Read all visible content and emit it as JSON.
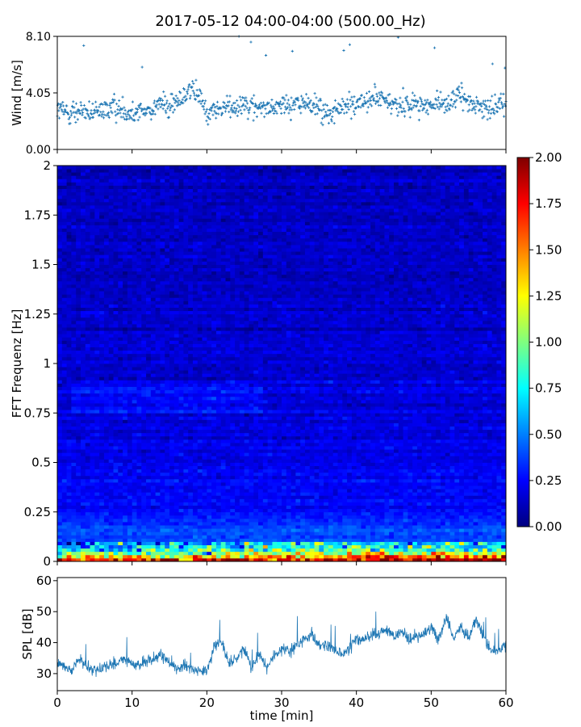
{
  "figure": {
    "title": "2017-05-12 04:00-04:00 (500.00_Hz)"
  },
  "chart_data": [
    {
      "id": "wind",
      "type": "scatter",
      "ylabel": "Wind [m/s]",
      "xlim": [
        0,
        60
      ],
      "ylim": [
        0.0,
        8.1
      ],
      "yticks": [
        0.0,
        4.05,
        8.1
      ],
      "ytick_labels": [
        "0.00",
        "4.05",
        "8.10"
      ],
      "marker": "+",
      "color": "#1f77b4",
      "sample_count": 900,
      "series": [
        {
          "x": [
            0.0,
            2.5,
            5.0,
            7.5,
            10.0,
            12.5,
            14.0,
            15.0,
            17.5,
            19.0,
            20.0,
            22.5,
            25.0,
            27.5,
            30.0,
            32.5,
            35.0,
            36.0,
            37.5,
            40.0,
            42.5,
            45.0,
            47.5,
            50.0,
            52.5,
            54.0,
            55.0,
            57.5,
            60.0
          ],
          "y": [
            2.8,
            2.7,
            2.6,
            3.0,
            2.7,
            2.8,
            3.4,
            2.9,
            4.3,
            3.8,
            2.6,
            3.0,
            3.4,
            2.9,
            3.2,
            3.3,
            3.0,
            2.4,
            2.9,
            3.3,
            3.7,
            3.2,
            3.3,
            3.1,
            3.4,
            3.9,
            3.3,
            3.0,
            3.2
          ]
        }
      ]
    },
    {
      "id": "spectrogram",
      "type": "heatmap",
      "ylabel": "FFT Frequenz [Hz]",
      "xlim": [
        0,
        60
      ],
      "ylim": [
        0,
        2
      ],
      "yticks": [
        0,
        0.25,
        0.5,
        0.75,
        1,
        1.25,
        1.5,
        1.75,
        2
      ],
      "ytick_labels": [
        "0",
        "0.25",
        "0.5",
        "0.75",
        "1",
        "1.25",
        "1.5",
        "1.75",
        "2"
      ],
      "colormap": "jet",
      "value_range": [
        0.0,
        2.0
      ],
      "colorbar_ticks": [
        0.0,
        0.25,
        0.5,
        0.75,
        1.0,
        1.25,
        1.5,
        1.75,
        2.0
      ],
      "colorbar_tick_labels": [
        "0.00",
        "0.25",
        "0.50",
        "0.75",
        "1.00",
        "1.25",
        "1.50",
        "1.75",
        "2.00"
      ],
      "time_bins": 96,
      "freq_bins": 120,
      "frequency_profile": {
        "freq": [
          0.0,
          0.02,
          0.05,
          0.1,
          0.25,
          0.5,
          1.0,
          1.5,
          2.0
        ],
        "level": [
          1.9,
          1.4,
          0.8,
          0.42,
          0.27,
          0.2,
          0.16,
          0.14,
          0.12
        ]
      }
    },
    {
      "id": "spl",
      "type": "line",
      "ylabel": "SPL [dB]",
      "xlabel": "time [min]",
      "xlim": [
        0,
        60
      ],
      "ylim": [
        24.5,
        61
      ],
      "yticks": [
        30,
        40,
        50,
        60
      ],
      "ytick_labels": [
        "30",
        "40",
        "50",
        "60"
      ],
      "xticks": [
        0,
        10,
        20,
        30,
        40,
        50,
        60
      ],
      "xtick_labels": [
        "0",
        "10",
        "20",
        "30",
        "40",
        "50",
        "60"
      ],
      "color": "#1f77b4",
      "series": [
        {
          "x": [
            0,
            1,
            2,
            3,
            4,
            5,
            6,
            7,
            8,
            9,
            10,
            11,
            12,
            13,
            14,
            15,
            16,
            17,
            18,
            19,
            20,
            21,
            22,
            23,
            24,
            25,
            26,
            27,
            28,
            29,
            30,
            31,
            32,
            33,
            34,
            35,
            36,
            37,
            38,
            39,
            40,
            41,
            42,
            43,
            44,
            45,
            46,
            47,
            48,
            49,
            50,
            51,
            52,
            53,
            54,
            55,
            56,
            57,
            58,
            59,
            60
          ],
          "y": [
            34,
            32,
            31,
            35,
            32,
            31,
            32,
            33,
            33,
            35,
            33,
            33,
            34,
            35,
            36,
            33,
            32,
            33,
            32,
            31,
            31,
            39,
            40,
            33,
            35,
            38,
            32,
            36,
            32,
            36,
            38,
            37,
            39,
            41,
            43,
            39,
            39,
            38,
            36,
            38,
            41,
            41,
            42,
            43,
            44,
            42,
            44,
            41,
            42,
            43,
            45,
            41,
            48,
            42,
            45,
            41,
            48,
            42,
            37,
            37,
            40
          ]
        }
      ]
    }
  ]
}
